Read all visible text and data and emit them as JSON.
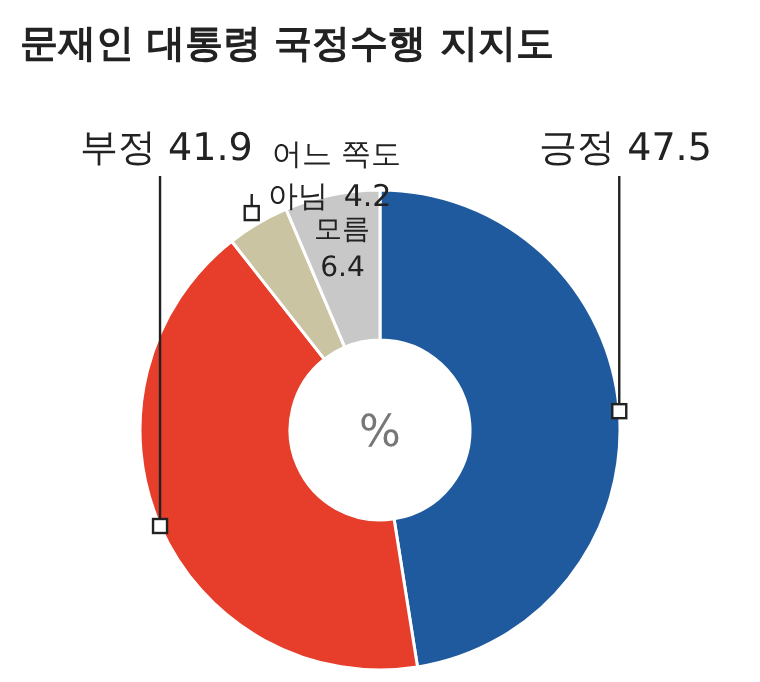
{
  "chart_data": {
    "type": "donut",
    "title": "문재인 대통령 국정수행 지지도",
    "categories": [
      "긍정",
      "부정",
      "어느 쪽도 아님",
      "모름"
    ],
    "values": [
      47.5,
      41.9,
      4.2,
      6.4
    ],
    "colors": [
      "#1f5a9e",
      "#e63e2a",
      "#cbc4a2",
      "#c8c8c8"
    ],
    "data_labels": true,
    "annotations": [
      "%"
    ]
  }
}
